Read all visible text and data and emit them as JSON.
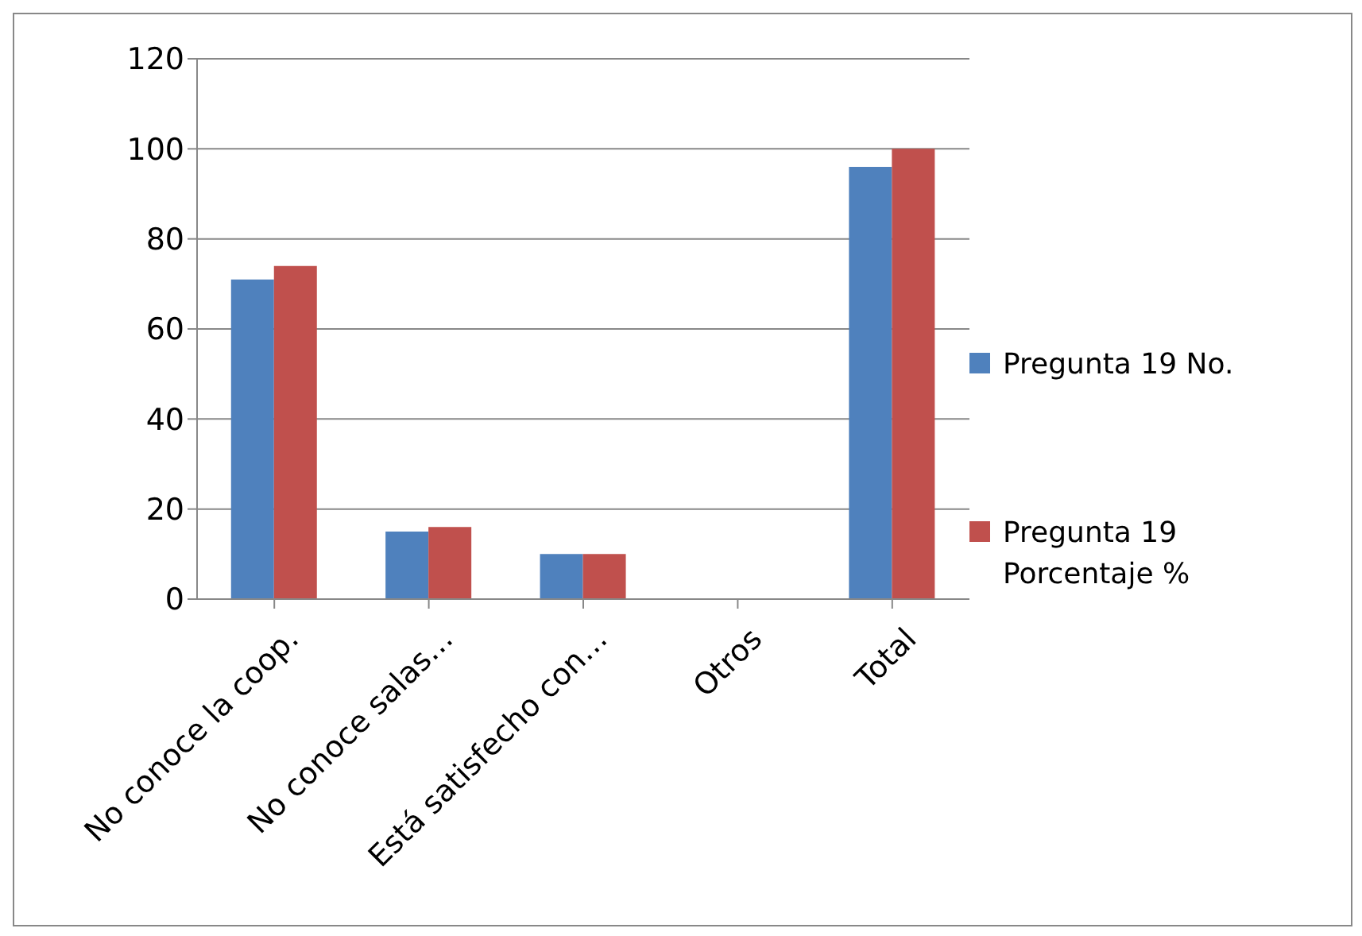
{
  "chart_data": {
    "type": "bar",
    "categories": [
      "No conoce la coop.",
      "No conoce salas…",
      "Está satisfecho con…",
      "Otros",
      "Total"
    ],
    "series": [
      {
        "name": "Pregunta 19 No.",
        "color": "#4f81bd",
        "values": [
          71,
          15,
          10,
          0,
          96
        ]
      },
      {
        "name": "Pregunta 19 Porcentaje %",
        "color": "#c0504d",
        "values": [
          74,
          16,
          10,
          0,
          100
        ]
      }
    ],
    "ylim": [
      0,
      120
    ],
    "yticks": [
      0,
      20,
      40,
      60,
      80,
      100,
      120
    ],
    "grid": "y",
    "legend": "right"
  }
}
